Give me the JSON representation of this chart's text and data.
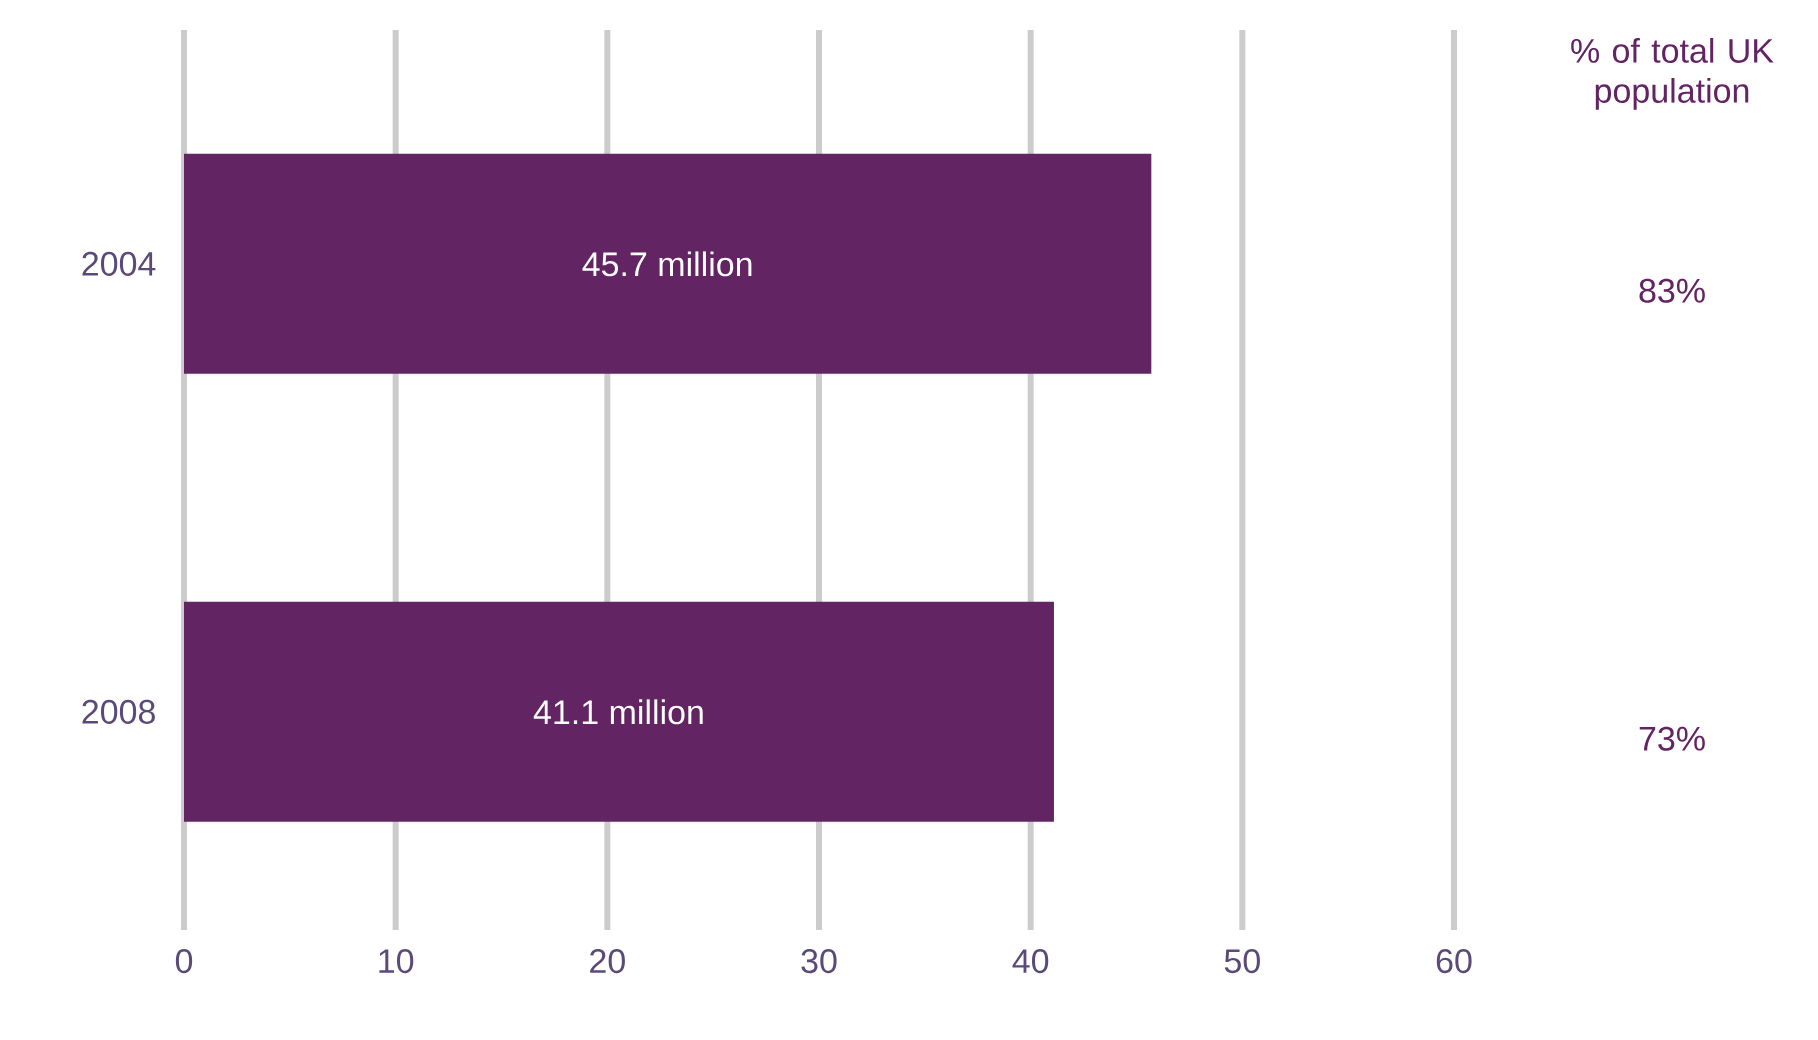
{
  "chart_data": {
    "type": "bar",
    "orientation": "horizontal",
    "categories": [
      "2004",
      "2008"
    ],
    "values": [
      45.7,
      41.1
    ],
    "value_labels": [
      "45.7 million",
      "41.1 million"
    ],
    "color": "#622462",
    "xlim": [
      0,
      60
    ],
    "xticks": [
      0,
      10,
      20,
      30,
      40,
      50,
      60
    ],
    "grid": "x",
    "annotations": [
      "% of total UK population",
      "83%",
      "73%"
    ]
  }
}
